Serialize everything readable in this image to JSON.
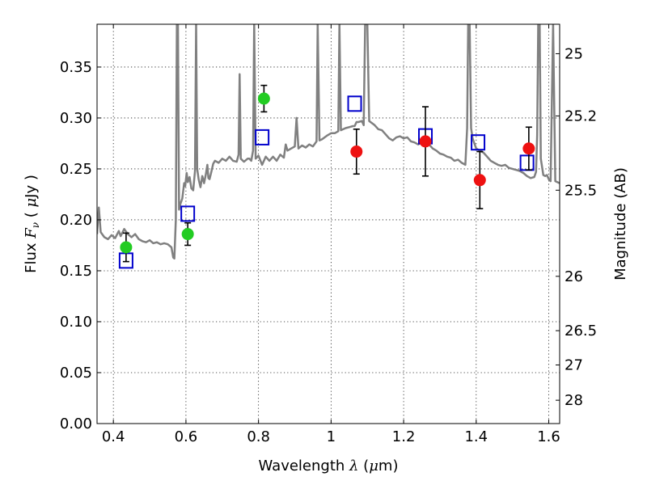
{
  "chart_data": {
    "type": "scatter",
    "title": "",
    "xlabel": {
      "prefix": "Wavelength  ",
      "lambda": "λ",
      "open": " (",
      "mu": "μ",
      "unit": "m)"
    },
    "ylabel": {
      "prefix": "Flux  ",
      "F": "F",
      "nu": "ν",
      "mid": "  ( ",
      "mu": "μ",
      "unit": "Jy )"
    },
    "y2label": "Magnitude (AB)",
    "xlim": [
      0.355,
      1.63
    ],
    "ylim": [
      0.0,
      0.392
    ],
    "x_ticks": [
      {
        "value": 0.4,
        "label": "0.4"
      },
      {
        "value": 0.6,
        "label": "0.6"
      },
      {
        "value": 0.8,
        "label": "0.8"
      },
      {
        "value": 1.0,
        "label": "1"
      },
      {
        "value": 1.2,
        "label": "1.2"
      },
      {
        "value": 1.4,
        "label": "1.4"
      },
      {
        "value": 1.6,
        "label": "1.6"
      }
    ],
    "y_ticks": [
      {
        "value": 0.0,
        "label": "0.00"
      },
      {
        "value": 0.05,
        "label": "0.05"
      },
      {
        "value": 0.1,
        "label": "0.10"
      },
      {
        "value": 0.15,
        "label": "0.15"
      },
      {
        "value": 0.2,
        "label": "0.20"
      },
      {
        "value": 0.25,
        "label": "0.25"
      },
      {
        "value": 0.3,
        "label": "0.30"
      },
      {
        "value": 0.35,
        "label": "0.35"
      }
    ],
    "y2_ticks": [
      {
        "mag": 25,
        "label": "25"
      },
      {
        "mag": 25.2,
        "label": "25.2"
      },
      {
        "mag": 25.5,
        "label": "25.5"
      },
      {
        "mag": 26,
        "label": "26"
      },
      {
        "mag": 26.5,
        "label": "26.5"
      },
      {
        "mag": 27,
        "label": "27"
      },
      {
        "mag": 28,
        "label": "28"
      }
    ],
    "grid": true,
    "series": [
      {
        "kind": "model_spectrum",
        "color": "#808080",
        "points": [
          [
            0.355,
            0.186
          ],
          [
            0.36,
            0.212
          ],
          [
            0.365,
            0.188
          ],
          [
            0.375,
            0.183
          ],
          [
            0.385,
            0.181
          ],
          [
            0.395,
            0.185
          ],
          [
            0.405,
            0.182
          ],
          [
            0.415,
            0.189
          ],
          [
            0.42,
            0.184
          ],
          [
            0.43,
            0.191
          ],
          [
            0.44,
            0.186
          ],
          [
            0.45,
            0.183
          ],
          [
            0.46,
            0.186
          ],
          [
            0.47,
            0.181
          ],
          [
            0.48,
            0.179
          ],
          [
            0.49,
            0.178
          ],
          [
            0.5,
            0.18
          ],
          [
            0.51,
            0.177
          ],
          [
            0.52,
            0.178
          ],
          [
            0.53,
            0.176
          ],
          [
            0.54,
            0.177
          ],
          [
            0.55,
            0.176
          ],
          [
            0.56,
            0.173
          ],
          [
            0.565,
            0.163
          ],
          [
            0.568,
            0.162
          ],
          [
            0.572,
            0.2
          ],
          [
            0.575,
            0.392
          ],
          [
            0.578,
            0.392
          ],
          [
            0.581,
            0.21
          ],
          [
            0.585,
            0.216
          ],
          [
            0.59,
            0.221
          ],
          [
            0.595,
            0.236
          ],
          [
            0.598,
            0.233
          ],
          [
            0.602,
            0.246
          ],
          [
            0.605,
            0.237
          ],
          [
            0.61,
            0.242
          ],
          [
            0.615,
            0.231
          ],
          [
            0.62,
            0.229
          ],
          [
            0.625,
            0.248
          ],
          [
            0.628,
            0.392
          ],
          [
            0.631,
            0.25
          ],
          [
            0.635,
            0.24
          ],
          [
            0.64,
            0.232
          ],
          [
            0.645,
            0.243
          ],
          [
            0.65,
            0.236
          ],
          [
            0.655,
            0.245
          ],
          [
            0.659,
            0.254
          ],
          [
            0.662,
            0.241
          ],
          [
            0.665,
            0.24
          ],
          [
            0.67,
            0.247
          ],
          [
            0.675,
            0.255
          ],
          [
            0.68,
            0.258
          ],
          [
            0.69,
            0.256
          ],
          [
            0.7,
            0.26
          ],
          [
            0.71,
            0.258
          ],
          [
            0.72,
            0.262
          ],
          [
            0.73,
            0.258
          ],
          [
            0.74,
            0.257
          ],
          [
            0.745,
            0.264
          ],
          [
            0.748,
            0.343
          ],
          [
            0.751,
            0.26
          ],
          [
            0.76,
            0.257
          ],
          [
            0.77,
            0.26
          ],
          [
            0.775,
            0.26
          ],
          [
            0.78,
            0.258
          ],
          [
            0.785,
            0.268
          ],
          [
            0.788,
            0.392
          ],
          [
            0.792,
            0.26
          ],
          [
            0.8,
            0.263
          ],
          [
            0.81,
            0.254
          ],
          [
            0.82,
            0.262
          ],
          [
            0.83,
            0.258
          ],
          [
            0.84,
            0.262
          ],
          [
            0.85,
            0.258
          ],
          [
            0.86,
            0.264
          ],
          [
            0.87,
            0.261
          ],
          [
            0.875,
            0.274
          ],
          [
            0.88,
            0.268
          ],
          [
            0.89,
            0.27
          ],
          [
            0.9,
            0.272
          ],
          [
            0.905,
            0.3
          ],
          [
            0.91,
            0.27
          ],
          [
            0.92,
            0.273
          ],
          [
            0.93,
            0.271
          ],
          [
            0.94,
            0.274
          ],
          [
            0.95,
            0.272
          ],
          [
            0.96,
            0.277
          ],
          [
            0.963,
            0.392
          ],
          [
            0.968,
            0.278
          ],
          [
            0.975,
            0.279
          ],
          [
            0.99,
            0.283
          ],
          [
            1.0,
            0.285
          ],
          [
            1.01,
            0.285
          ],
          [
            1.02,
            0.287
          ],
          [
            1.023,
            0.392
          ],
          [
            1.027,
            0.288
          ],
          [
            1.04,
            0.29
          ],
          [
            1.05,
            0.291
          ],
          [
            1.06,
            0.292
          ],
          [
            1.065,
            0.292
          ],
          [
            1.07,
            0.296
          ],
          [
            1.075,
            0.296
          ],
          [
            1.085,
            0.297
          ],
          [
            1.09,
            0.293
          ],
          [
            1.094,
            0.392
          ],
          [
            1.1,
            0.392
          ],
          [
            1.105,
            0.297
          ],
          [
            1.12,
            0.293
          ],
          [
            1.13,
            0.289
          ],
          [
            1.14,
            0.288
          ],
          [
            1.15,
            0.284
          ],
          [
            1.16,
            0.28
          ],
          [
            1.17,
            0.278
          ],
          [
            1.18,
            0.281
          ],
          [
            1.19,
            0.282
          ],
          [
            1.2,
            0.28
          ],
          [
            1.21,
            0.281
          ],
          [
            1.22,
            0.277
          ],
          [
            1.23,
            0.276
          ],
          [
            1.24,
            0.274
          ],
          [
            1.25,
            0.276
          ],
          [
            1.26,
            0.273
          ],
          [
            1.27,
            0.274
          ],
          [
            1.28,
            0.27
          ],
          [
            1.29,
            0.268
          ],
          [
            1.3,
            0.265
          ],
          [
            1.31,
            0.264
          ],
          [
            1.32,
            0.262
          ],
          [
            1.33,
            0.261
          ],
          [
            1.34,
            0.258
          ],
          [
            1.35,
            0.259
          ],
          [
            1.36,
            0.256
          ],
          [
            1.37,
            0.254
          ],
          [
            1.375,
            0.29
          ],
          [
            1.378,
            0.392
          ],
          [
            1.382,
            0.392
          ],
          [
            1.386,
            0.29
          ],
          [
            1.39,
            0.28
          ],
          [
            1.4,
            0.27
          ],
          [
            1.41,
            0.268
          ],
          [
            1.42,
            0.266
          ],
          [
            1.43,
            0.262
          ],
          [
            1.44,
            0.258
          ],
          [
            1.45,
            0.256
          ],
          [
            1.46,
            0.254
          ],
          [
            1.47,
            0.253
          ],
          [
            1.48,
            0.254
          ],
          [
            1.49,
            0.251
          ],
          [
            1.5,
            0.25
          ],
          [
            1.51,
            0.249
          ],
          [
            1.52,
            0.248
          ],
          [
            1.53,
            0.246
          ],
          [
            1.54,
            0.243
          ],
          [
            1.55,
            0.241
          ],
          [
            1.56,
            0.242
          ],
          [
            1.565,
            0.247
          ],
          [
            1.568,
            0.283
          ],
          [
            1.571,
            0.392
          ],
          [
            1.575,
            0.392
          ],
          [
            1.578,
            0.26
          ],
          [
            1.585,
            0.244
          ],
          [
            1.59,
            0.243
          ],
          [
            1.595,
            0.244
          ],
          [
            1.6,
            0.24
          ],
          [
            1.605,
            0.238
          ],
          [
            1.612,
            0.392
          ],
          [
            1.618,
            0.238
          ],
          [
            1.63,
            0.236
          ]
        ]
      },
      {
        "kind": "model_band_flux",
        "marker": "open-square",
        "color": "#0000cc",
        "points": [
          [
            0.435,
            0.16
          ],
          [
            0.605,
            0.206
          ],
          [
            0.81,
            0.281
          ],
          [
            1.065,
            0.314
          ],
          [
            1.26,
            0.282
          ],
          [
            1.405,
            0.276
          ],
          [
            1.54,
            0.256
          ]
        ]
      },
      {
        "kind": "observed_optical",
        "marker": "filled-circle",
        "color": "#22cc22",
        "points": [
          {
            "x": 0.435,
            "y": 0.173,
            "err": 0.014
          },
          {
            "x": 0.605,
            "y": 0.186,
            "err": 0.011
          },
          {
            "x": 0.815,
            "y": 0.319,
            "err": 0.013
          }
        ]
      },
      {
        "kind": "observed_nir",
        "marker": "filled-circle",
        "color": "#ee1111",
        "points": [
          {
            "x": 1.07,
            "y": 0.267,
            "err": 0.022
          },
          {
            "x": 1.26,
            "y": 0.277,
            "err": 0.034
          },
          {
            "x": 1.41,
            "y": 0.239,
            "err": 0.028
          },
          {
            "x": 1.545,
            "y": 0.27,
            "err": 0.021
          }
        ]
      }
    ]
  }
}
